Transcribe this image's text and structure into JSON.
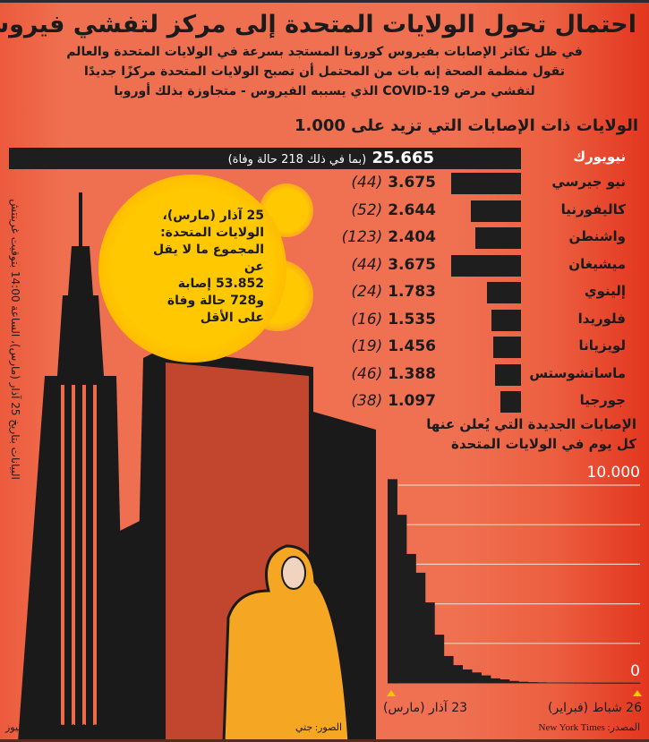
{
  "title": "احتمال تحول الولايات المتحدة إلى مركز لتفشي فيروس كورونا",
  "subtitle": [
    "في ظل تكاثر الإصابات بفيروس كورونا المستجد بسرعة في الولايات المتحدة والعالم",
    "تقول منظمة الصحة إنه بات من المحتمل أن تصبح الولايات المتحدة مركزًا جديدًا",
    "لتفشي مرض COVID-19 الذي يسببه الفيروس - متجاوزة بذلك أوروبا"
  ],
  "side_note": "البيانات بتاريخ 25 آذار (مارس)، الساعة 14:00 بتوقيت غرينتش",
  "bubble": [
    "25 آذار (مارس)،",
    "الولايات المتحدة:",
    "المجموع ما لا يقل عن",
    "53.852 إصابة",
    "و728 حالة وفاة",
    "على الأقل"
  ],
  "colors": {
    "background": "#ef7050",
    "bars": "#1e1e1e",
    "bubble": "#ffc800",
    "gridline": "#f7c9b8"
  },
  "chart_data": [
    {
      "type": "bar",
      "orientation": "horizontal",
      "title": "الولايات ذات الإصابات التي تزيد على 1.000",
      "categories": [
        "نيويورك",
        "نيو جيرسي",
        "كاليفورنيا",
        "واشنطن",
        "ميشيغان",
        "إلينوي",
        "فلوريدا",
        "لويزيانا",
        "ماساتشوستس",
        "جورجيا"
      ],
      "values": [
        25665,
        3675,
        2644,
        2404,
        3675,
        1783,
        1535,
        1456,
        1388,
        1097
      ],
      "value_labels": [
        "25.665",
        "3.675",
        "2.644",
        "2.404",
        "3.675",
        "1.783",
        "1.535",
        "1.456",
        "1.388",
        "1.097"
      ],
      "deaths_labels": [
        "(44)",
        "(52)",
        "(123)",
        "(44)",
        "(24)",
        "(16)",
        "(19)",
        "(46)",
        "(38)"
      ],
      "ny_note": "(بما في ذلك 218 حالة وفاة)"
    },
    {
      "type": "bar",
      "title": "الإصابات الجديدة التي يُعلن عنها كل يوم في الولايات المتحدة",
      "x_start": "26 شباط (فبراير)",
      "x_end": "23 آذار (مارس)",
      "ylim": [
        0,
        10000
      ],
      "y_tick_labels": [
        "10.000",
        "0"
      ],
      "gridlines": [
        0,
        2000,
        4000,
        6000,
        8000,
        10000
      ],
      "values": [
        0,
        0,
        1,
        1,
        2,
        5,
        8,
        10,
        15,
        20,
        30,
        40,
        60,
        100,
        180,
        230,
        380,
        530,
        680,
        900,
        1360,
        2440,
        4070,
        5570,
        6520,
        8500,
        10300
      ],
      "source": "المصدر: New York Times"
    }
  ],
  "footer": {
    "photos": "الصور: جتي",
    "brand": "GRAPHIC NEWS جرافيك نيوز"
  }
}
